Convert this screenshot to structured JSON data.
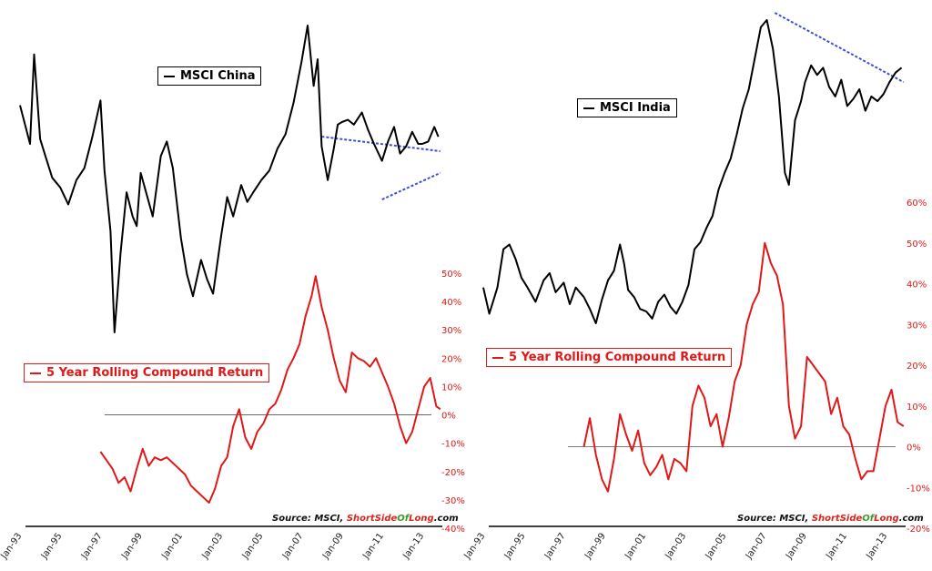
{
  "source": {
    "prefix": "Source: MSCI, ",
    "short": "ShortSide",
    "of": "Of",
    "long": "Long",
    "suffix": ".com"
  },
  "chart_data": [
    {
      "type": "line",
      "panel": "left",
      "x_ticks": [
        "Jan-93",
        "Jan-95",
        "Jan-97",
        "Jan-99",
        "Jan-01",
        "Jan-03",
        "Jan-05",
        "Jan-07",
        "Jan-09",
        "Jan-11",
        "Jan-13"
      ],
      "x_range": [
        1993.0,
        2014.0
      ],
      "y_right_ticks": [
        "50%",
        "40%",
        "30%",
        "20%",
        "10%",
        "0%",
        "-10%",
        "-20%",
        "-30%",
        "-40%"
      ],
      "y_right_range": [
        -40,
        50
      ],
      "series": [
        {
          "name": "MSCI China",
          "color": "#000000",
          "x": [
            1993.0,
            1993.5,
            1993.7,
            1994.0,
            1994.3,
            1994.6,
            1995.0,
            1995.4,
            1995.8,
            1996.2,
            1996.6,
            1997.0,
            1997.2,
            1997.5,
            1997.7,
            1998.0,
            1998.3,
            1998.6,
            1998.8,
            1999.0,
            1999.3,
            1999.6,
            2000.0,
            2000.3,
            2000.6,
            2001.0,
            2001.3,
            2001.6,
            2002.0,
            2002.3,
            2002.6,
            2003.0,
            2003.3,
            2003.6,
            2004.0,
            2004.3,
            2004.6,
            2005.0,
            2005.4,
            2005.8,
            2006.2,
            2006.6,
            2007.0,
            2007.3,
            2007.6,
            2007.8,
            2008.0,
            2008.3,
            2008.6,
            2008.8,
            2009.0,
            2009.3,
            2009.6,
            2010.0,
            2010.3,
            2010.6,
            2011.0,
            2011.3,
            2011.6,
            2011.9,
            2012.2,
            2012.5,
            2012.8,
            2013.0,
            2013.3,
            2013.6,
            2013.8
          ],
          "y": [
            100,
            84,
            121,
            86,
            78,
            70,
            66,
            59,
            69,
            74,
            87,
            102,
            73,
            48,
            6,
            39,
            64,
            54,
            50,
            72,
            63,
            54,
            79,
            85,
            74,
            45,
            30,
            21,
            36,
            28,
            22,
            46,
            62,
            54,
            67,
            60,
            64,
            69,
            73,
            82,
            88,
            101,
            118,
            133,
            108,
            119,
            83,
            69,
            82,
            92,
            93,
            94,
            92,
            97,
            90,
            84,
            77,
            85,
            91,
            80,
            83,
            89,
            84,
            84,
            85,
            91,
            87
          ]
        },
        {
          "name": "5 Year Rolling Compound Return",
          "color": "#e01818",
          "x": [
            1997.0,
            1997.3,
            1997.6,
            1997.9,
            1998.2,
            1998.5,
            1998.8,
            1999.1,
            1999.4,
            1999.7,
            2000.0,
            2000.3,
            2000.6,
            2000.9,
            2001.2,
            2001.5,
            2001.8,
            2002.1,
            2002.4,
            2002.7,
            2003.0,
            2003.3,
            2003.6,
            2003.9,
            2004.2,
            2004.5,
            2004.8,
            2005.1,
            2005.4,
            2005.7,
            2006.0,
            2006.3,
            2006.6,
            2006.9,
            2007.2,
            2007.5,
            2007.7,
            2008.0,
            2008.3,
            2008.6,
            2008.9,
            2009.2,
            2009.5,
            2009.8,
            2010.1,
            2010.4,
            2010.7,
            2011.0,
            2011.3,
            2011.6,
            2011.9,
            2012.2,
            2012.5,
            2012.8,
            2013.1,
            2013.4,
            2013.7,
            2013.9
          ],
          "y": [
            -13,
            -16,
            -19,
            -24,
            -22,
            -27,
            -19,
            -12,
            -18,
            -15,
            -16,
            -15,
            -17,
            -19,
            -21,
            -25,
            -27,
            -29,
            -31,
            -26,
            -18,
            -15,
            -4,
            2,
            -8,
            -12,
            -6,
            -3,
            2,
            4,
            9,
            16,
            20,
            25,
            35,
            42,
            49,
            38,
            30,
            20,
            12,
            8,
            22,
            20,
            19,
            17,
            20,
            15,
            10,
            4,
            -4,
            -10,
            -6,
            2,
            10,
            13,
            3,
            2
          ]
        }
      ],
      "annotations": [
        {
          "type": "trendline",
          "from": [
            2008.0,
            87
          ],
          "to": [
            2013.9,
            81
          ]
        },
        {
          "type": "trendline",
          "from": [
            2011.0,
            61
          ],
          "to": [
            2013.9,
            72
          ]
        }
      ]
    },
    {
      "type": "line",
      "panel": "right",
      "x_ticks": [
        "Jan-93",
        "Jan-95",
        "Jan-97",
        "Jan-99",
        "Jan-01",
        "Jan-03",
        "Jan-05",
        "Jan-07",
        "Jan-09",
        "Jan-11",
        "Jan-13"
      ],
      "x_range": [
        1993.0,
        2014.0
      ],
      "y_right_ticks": [
        "60%",
        "50%",
        "40%",
        "30%",
        "20%",
        "10%",
        "0%",
        "-10%",
        "-20%"
      ],
      "y_right_range": [
        -20,
        60
      ],
      "series": [
        {
          "name": "MSCI India",
          "color": "#000000",
          "x": [
            1993.0,
            1993.3,
            1993.7,
            1994.0,
            1994.3,
            1994.6,
            1994.9,
            1995.2,
            1995.6,
            1996.0,
            1996.3,
            1996.6,
            1997.0,
            1997.3,
            1997.6,
            1998.0,
            1998.3,
            1998.6,
            1998.9,
            1999.2,
            1999.5,
            1999.8,
            2000.0,
            2000.2,
            2000.5,
            2000.8,
            2001.1,
            2001.4,
            2001.7,
            2002.0,
            2002.3,
            2002.6,
            2002.9,
            2003.2,
            2003.5,
            2003.8,
            2004.1,
            2004.4,
            2004.7,
            2005.0,
            2005.3,
            2005.6,
            2005.9,
            2006.2,
            2006.5,
            2006.8,
            2007.1,
            2007.4,
            2007.7,
            2008.0,
            2008.2,
            2008.5,
            2008.8,
            2009.0,
            2009.3,
            2009.6,
            2009.9,
            2010.2,
            2010.5,
            2010.8,
            2011.1,
            2011.4,
            2011.7,
            2012.0,
            2012.3,
            2012.6,
            2012.9,
            2013.2,
            2013.5,
            2013.8
          ],
          "y": [
            12,
            1,
            12,
            28,
            30,
            24,
            16,
            12,
            6,
            15,
            18,
            10,
            14,
            5,
            12,
            8,
            3,
            -3,
            7,
            15,
            19,
            30,
            22,
            11,
            8,
            3,
            2,
            -1,
            6,
            9,
            4,
            1,
            6,
            13,
            28,
            31,
            37,
            42,
            53,
            60,
            66,
            76,
            87,
            95,
            108,
            121,
            124,
            112,
            92,
            60,
            55,
            82,
            90,
            98,
            105,
            101,
            104,
            96,
            92,
            99,
            88,
            91,
            95,
            86,
            92,
            90,
            93,
            98,
            102,
            104
          ]
        },
        {
          "name": "5 Year Rolling Compound Return",
          "color": "#e01818",
          "x": [
            1998.0,
            1998.3,
            1998.6,
            1998.9,
            1999.2,
            1999.5,
            1999.8,
            2000.1,
            2000.4,
            2000.7,
            2001.0,
            2001.3,
            2001.6,
            2001.9,
            2002.2,
            2002.5,
            2002.8,
            2003.1,
            2003.4,
            2003.7,
            2004.0,
            2004.3,
            2004.6,
            2004.9,
            2005.2,
            2005.5,
            2005.8,
            2006.1,
            2006.4,
            2006.7,
            2007.0,
            2007.3,
            2007.6,
            2007.9,
            2008.2,
            2008.5,
            2008.8,
            2009.1,
            2009.4,
            2009.7,
            2010.0,
            2010.3,
            2010.6,
            2010.9,
            2011.2,
            2011.5,
            2011.8,
            2012.1,
            2012.4,
            2012.7,
            2013.0,
            2013.3,
            2013.6,
            2013.9
          ],
          "y": [
            0,
            7,
            -2,
            -8,
            -11,
            -3,
            8,
            3,
            -1,
            4,
            -4,
            -7,
            -5,
            -2,
            -8,
            -3,
            -4,
            -6,
            10,
            15,
            12,
            5,
            8,
            0,
            7,
            16,
            20,
            30,
            35,
            38,
            50,
            45,
            42,
            35,
            10,
            2,
            5,
            22,
            20,
            18,
            16,
            8,
            12,
            5,
            3,
            -3,
            -8,
            -6,
            -6,
            2,
            10,
            14,
            6,
            5
          ]
        }
      ],
      "annotations": [
        {
          "type": "trendline",
          "from": [
            2007.5,
            127
          ],
          "to": [
            2013.9,
            98
          ]
        }
      ]
    }
  ]
}
